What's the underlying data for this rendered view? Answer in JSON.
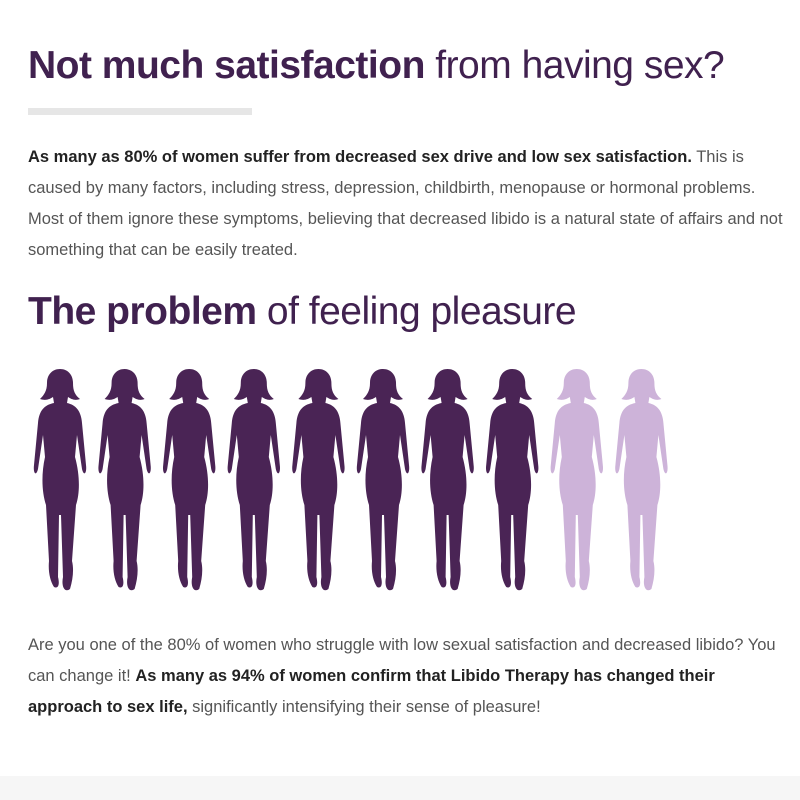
{
  "heading_1": {
    "bold": "Not much satisfaction",
    "light": "from having sex?"
  },
  "paragraph_1": {
    "bold": "As many as 80% of women suffer from decreased sex drive and low sex satisfaction.",
    "text": "This is caused by many factors, including stress, depression, childbirth, menopause or hormonal problems. Most of them ignore these symptoms, believing that decreased libido is a natural state of affairs and not something that can be easily treated."
  },
  "heading_2": {
    "bold": "The problem",
    "light": "of feeling pleasure"
  },
  "paragraph_2": {
    "text_start": "Are you one of the 80% of women who struggle with low sexual satisfaction and decreased libido? You can change it!",
    "bold": "As many as 94% of women confirm that Libido Therapy has changed their approach to sex life,",
    "text_end": "significantly intensifying their sense of pleasure!"
  }
}
